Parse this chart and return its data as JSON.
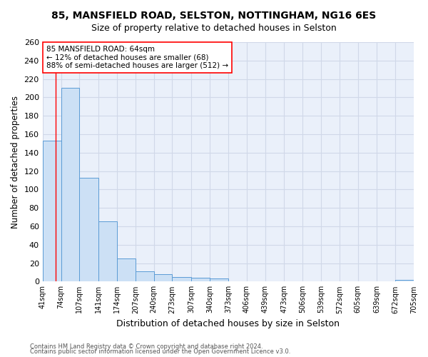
{
  "title1": "85, MANSFIELD ROAD, SELSTON, NOTTINGHAM, NG16 6ES",
  "title2": "Size of property relative to detached houses in Selston",
  "xlabel": "Distribution of detached houses by size in Selston",
  "ylabel": "Number of detached properties",
  "bar_edges": [
    41,
    74,
    107,
    141,
    174,
    207,
    240,
    273,
    307,
    340,
    373,
    406,
    439,
    473,
    506,
    539,
    572,
    605,
    639,
    672,
    705
  ],
  "bar_heights": [
    153,
    210,
    113,
    65,
    25,
    11,
    8,
    5,
    4,
    3,
    0,
    0,
    0,
    0,
    0,
    0,
    0,
    0,
    0,
    2
  ],
  "bar_color": "#cce0f5",
  "bar_edge_color": "#5b9bd5",
  "grid_color": "#d0d8e8",
  "background_color": "#eaf0fa",
  "redline_x": 64,
  "annotation_line1": "85 MANSFIELD ROAD: 64sqm",
  "annotation_line2": "← 12% of detached houses are smaller (68)",
  "annotation_line3": "88% of semi-detached houses are larger (512) →",
  "footnote1": "Contains HM Land Registry data © Crown copyright and database right 2024.",
  "footnote2": "Contains public sector information licensed under the Open Government Licence v3.0.",
  "tick_labels": [
    "41sqm",
    "74sqm",
    "107sqm",
    "141sqm",
    "174sqm",
    "207sqm",
    "240sqm",
    "273sqm",
    "307sqm",
    "340sqm",
    "373sqm",
    "406sqm",
    "439sqm",
    "473sqm",
    "506sqm",
    "539sqm",
    "572sqm",
    "605sqm",
    "639sqm",
    "672sqm",
    "705sqm"
  ],
  "ylim": [
    0,
    260
  ],
  "yticks": [
    0,
    20,
    40,
    60,
    80,
    100,
    120,
    140,
    160,
    180,
    200,
    220,
    240,
    260
  ]
}
